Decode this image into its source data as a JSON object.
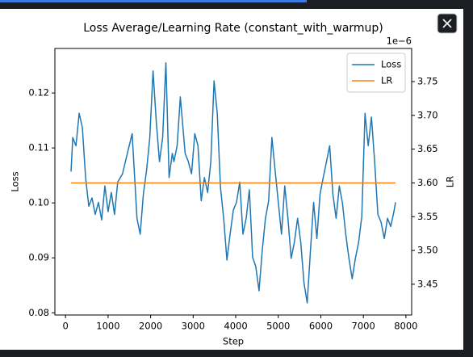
{
  "chart_data": {
    "type": "line",
    "title": "Loss Average/Learning Rate (constant_with_warmup)",
    "xlabel": "Step",
    "ylabel": "Loss",
    "y2label": "LR",
    "y2offset": "1e−6",
    "x": [
      130,
      170,
      245,
      321,
      396,
      472,
      547,
      623,
      698,
      774,
      849,
      925,
      1000,
      1076,
      1151,
      1227,
      1340,
      1453,
      1566,
      1679,
      1755,
      1830,
      1906,
      1981,
      2057,
      2132,
      2208,
      2283,
      2359,
      2434,
      2510,
      2547,
      2623,
      2698,
      2811,
      2887,
      2962,
      3038,
      3113,
      3189,
      3264,
      3340,
      3415,
      3491,
      3566,
      3642,
      3717,
      3793,
      3868,
      3944,
      4019,
      4095,
      4170,
      4246,
      4321,
      4397,
      4472,
      4548,
      4623,
      4699,
      4774,
      4850,
      4925,
      5001,
      5076,
      5152,
      5227,
      5303,
      5378,
      5454,
      5529,
      5605,
      5680,
      5756,
      5831,
      5907,
      5982,
      6057,
      6133,
      6208,
      6284,
      6359,
      6435,
      6510,
      6586,
      6661,
      6737,
      6812,
      6888,
      6963,
      7039,
      7114,
      7190,
      7265,
      7341,
      7416,
      7492,
      7567,
      7643,
      7718,
      7756
    ],
    "series": [
      {
        "name": "Loss",
        "color": "#1f77b4",
        "values": [
          0.1057,
          0.1119,
          0.1104,
          0.1163,
          0.1137,
          0.1046,
          0.0994,
          0.1009,
          0.0979,
          0.1001,
          0.0969,
          0.1031,
          0.0984,
          0.1019,
          0.0979,
          0.1038,
          0.1053,
          0.109,
          0.1126,
          0.0972,
          0.0943,
          0.1016,
          0.106,
          0.1119,
          0.124,
          0.1149,
          0.1075,
          0.1119,
          0.1255,
          0.1046,
          0.109,
          0.1075,
          0.1104,
          0.1193,
          0.109,
          0.1075,
          0.1053,
          0.1126,
          0.1104,
          0.1004,
          0.1046,
          0.1019,
          0.1075,
          0.1222,
          0.1163,
          0.1028,
          0.0972,
          0.0896,
          0.0943,
          0.0987,
          0.1001,
          0.1038,
          0.0943,
          0.0972,
          0.1024,
          0.0901,
          0.0884,
          0.084,
          0.0913,
          0.0972,
          0.1004,
          0.1119,
          0.106,
          0.1001,
          0.0943,
          0.1031,
          0.0972,
          0.0899,
          0.0928,
          0.0972,
          0.0928,
          0.0854,
          0.0818,
          0.0913,
          0.1001,
          0.0935,
          0.1016,
          0.1046,
          0.1075,
          0.1104,
          0.1016,
          0.0972,
          0.1031,
          0.0999,
          0.0943,
          0.0899,
          0.0862,
          0.0899,
          0.0928,
          0.0975,
          0.1163,
          0.1104,
          0.1156,
          0.1075,
          0.0979,
          0.0965,
          0.0935,
          0.0972,
          0.0957,
          0.0984,
          0.1001
        ]
      },
      {
        "name": "LR",
        "color": "#ff7f0e",
        "axis": "y2",
        "x": [
          130,
          7756
        ],
        "values": [
          3.6,
          3.6
        ]
      }
    ],
    "xlim": [
      -250,
      8135
    ],
    "xticks": [
      0,
      1000,
      2000,
      3000,
      4000,
      5000,
      6000,
      7000,
      8000
    ],
    "ylim": [
      0.0796,
      0.1281
    ],
    "yticks": [
      0.08,
      0.09,
      {
        "value": 0.1,
        "label": "0.10"
      },
      0.11,
      0.12
    ],
    "y2lim": [
      3.4045,
      3.799
    ],
    "y2ticks": [
      3.45,
      {
        "value": 3.5,
        "label": "3.50"
      },
      3.55,
      {
        "value": 3.6,
        "label": "3.60"
      },
      3.65,
      {
        "value": 3.7,
        "label": "3.70"
      },
      3.75
    ],
    "legend": "upper right"
  }
}
